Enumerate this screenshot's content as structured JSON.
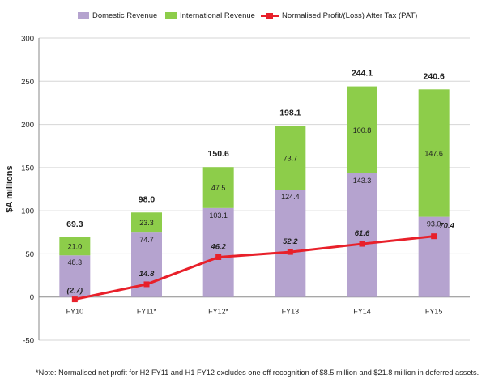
{
  "chart_data": {
    "type": "bar",
    "categories": [
      "FY10",
      "FY11*",
      "FY12*",
      "FY13",
      "FY14",
      "FY15"
    ],
    "series": [
      {
        "name": "Domestic Revenue",
        "kind": "bar",
        "stack": "revenue",
        "color": "#b5a3cf",
        "values": [
          48.3,
          74.7,
          103.1,
          124.4,
          143.3,
          93.0
        ],
        "labels": [
          "48.3",
          "74.7",
          "103.1",
          "124.4",
          "143.3",
          "93.0"
        ]
      },
      {
        "name": "International Revenue",
        "kind": "bar",
        "stack": "revenue",
        "color": "#8dcd4a",
        "values": [
          21.0,
          23.3,
          47.5,
          73.7,
          100.8,
          147.6
        ],
        "labels": [
          "21.0",
          "23.3",
          "47.5",
          "73.7",
          "100.8",
          "147.6"
        ]
      },
      {
        "name": "Normalised Profit/(Loss) After Tax (PAT)",
        "kind": "line",
        "color": "#e8202a",
        "values": [
          -2.7,
          14.8,
          46.2,
          52.2,
          61.6,
          70.4
        ],
        "labels": [
          "(2.7)",
          "14.8",
          "46.2",
          "52.2",
          "61.6",
          "70.4"
        ]
      }
    ],
    "totals": [
      "69.3",
      "98.0",
      "150.6",
      "198.1",
      "244.1",
      "240.6"
    ],
    "ylabel": "$A millions",
    "ylim": [
      -50,
      300
    ],
    "yticks": [
      "-50",
      "0",
      "50",
      "100",
      "150",
      "200",
      "250",
      "300"
    ],
    "grid": true,
    "legend": "top",
    "footnote": "*Note: Normalised net profit for H2 FY11 and H1 FY12 excludes one off recognition of $8.5 million and $21.8 million in deferred assets."
  }
}
